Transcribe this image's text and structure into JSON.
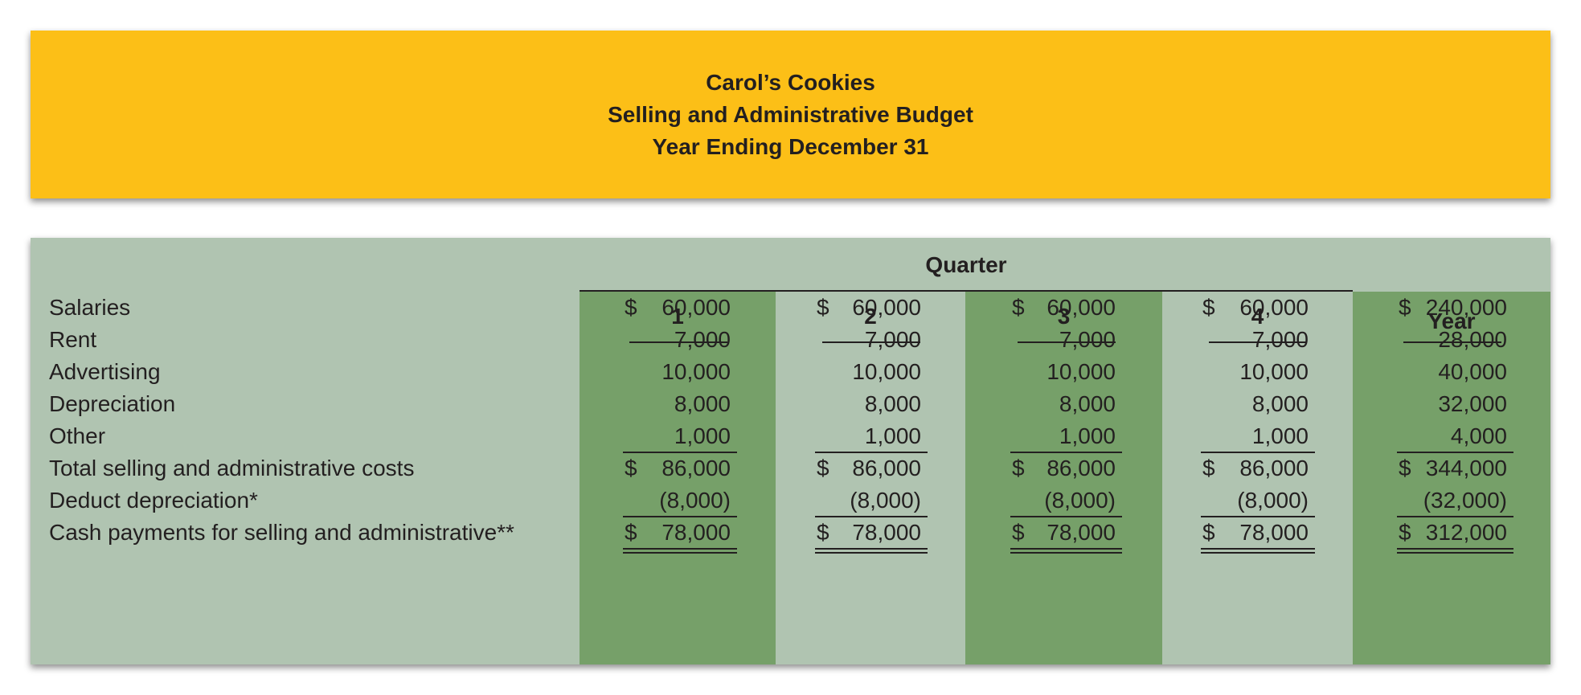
{
  "header": {
    "company": "Carol’s Cookies",
    "title": "Selling and Administrative Budget",
    "period": "Year Ending December 31"
  },
  "colors": {
    "header_bg": "#fcbf17",
    "panel_bg": "#b0c4b1",
    "band_dark": "#76a069",
    "band_light": "#b0c4b1"
  },
  "table": {
    "group_label": "Quarter",
    "columns": [
      "1",
      "2",
      "3",
      "4",
      "Year"
    ],
    "rows": [
      {
        "label": "Salaries",
        "values": [
          {
            "dollar": "$",
            "value": "60,000"
          },
          {
            "dollar": "$",
            "value": "60,000"
          },
          {
            "dollar": "$",
            "value": "60,000"
          },
          {
            "dollar": "$",
            "value": "60,000"
          },
          {
            "dollar": "$",
            "value": "240,000"
          }
        ]
      },
      {
        "label": "Rent",
        "values": [
          {
            "dollar": "",
            "value": "7,000"
          },
          {
            "dollar": "",
            "value": "7,000"
          },
          {
            "dollar": "",
            "value": "7,000"
          },
          {
            "dollar": "",
            "value": "7,000"
          },
          {
            "dollar": "",
            "value": "28,000"
          }
        ]
      },
      {
        "label": "Advertising",
        "values": [
          {
            "dollar": "",
            "value": "10,000"
          },
          {
            "dollar": "",
            "value": "10,000"
          },
          {
            "dollar": "",
            "value": "10,000"
          },
          {
            "dollar": "",
            "value": "10,000"
          },
          {
            "dollar": "",
            "value": "40,000"
          }
        ]
      },
      {
        "label": "Depreciation",
        "values": [
          {
            "dollar": "",
            "value": "8,000"
          },
          {
            "dollar": "",
            "value": "8,000"
          },
          {
            "dollar": "",
            "value": "8,000"
          },
          {
            "dollar": "",
            "value": "8,000"
          },
          {
            "dollar": "",
            "value": "32,000"
          }
        ]
      },
      {
        "label": "Other",
        "values": [
          {
            "dollar": "",
            "value": "1,000"
          },
          {
            "dollar": "",
            "value": "1,000"
          },
          {
            "dollar": "",
            "value": "1,000"
          },
          {
            "dollar": "",
            "value": "1,000"
          },
          {
            "dollar": "",
            "value": "4,000"
          }
        ]
      },
      {
        "label": "Total selling and administrative costs",
        "values": [
          {
            "dollar": "$",
            "value": "86,000"
          },
          {
            "dollar": "$",
            "value": "86,000"
          },
          {
            "dollar": "$",
            "value": "86,000"
          },
          {
            "dollar": "$",
            "value": "86,000"
          },
          {
            "dollar": "$",
            "value": "344,000"
          }
        ]
      },
      {
        "label": "Deduct depreciation*",
        "values": [
          {
            "dollar": "",
            "value": "(8,000)"
          },
          {
            "dollar": "",
            "value": "(8,000)"
          },
          {
            "dollar": "",
            "value": "(8,000)"
          },
          {
            "dollar": "",
            "value": "(8,000)"
          },
          {
            "dollar": "",
            "value": "(32,000)"
          }
        ]
      },
      {
        "label": "Cash payments for selling and administrative**",
        "values": [
          {
            "dollar": "$",
            "value": "78,000"
          },
          {
            "dollar": "$",
            "value": "78,000"
          },
          {
            "dollar": "$",
            "value": "78,000"
          },
          {
            "dollar": "$",
            "value": "78,000"
          },
          {
            "dollar": "$",
            "value": "312,000"
          }
        ]
      }
    ]
  }
}
